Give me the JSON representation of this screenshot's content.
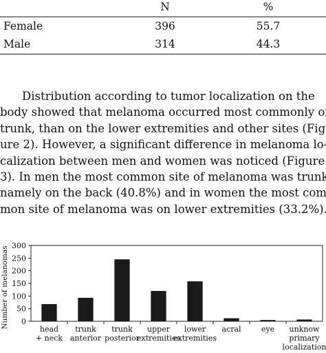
{
  "table": {
    "headers": [
      "",
      "N",
      "%"
    ],
    "rows": [
      {
        "label": "Female",
        "n": "396",
        "pct": "55.7"
      },
      {
        "label": "Male",
        "n": "314",
        "pct": "44.3"
      }
    ]
  },
  "paragraph_lines": [
    "Distribution according to tumor localization on the",
    "body showed that melanoma occurred most commonly on",
    "trunk, than on the lower extremities and other sites (Fig-",
    "ure 2). However, a significant difference in melanoma lo-",
    "calization between men and women was noticed (Figure",
    "3). In men the most common site of melanoma was trunk",
    "namely on the back (40.8%) and in women the most com-",
    "mon site of melanoma was on lower extremities (33.2%)."
  ],
  "chart_data": {
    "type": "bar",
    "title": "",
    "xlabel": "",
    "ylabel": "Number of melanomas",
    "ylim": [
      0,
      300
    ],
    "yticks": [
      0,
      50,
      100,
      150,
      200,
      250,
      300
    ],
    "grid": false,
    "categories": [
      [
        "head",
        "+ neck"
      ],
      [
        "trunk",
        "anterior"
      ],
      [
        "trunk",
        "posterior"
      ],
      [
        "upper",
        "extremities"
      ],
      [
        "lower",
        "extremities"
      ],
      [
        "acral"
      ],
      [
        "eye"
      ],
      [
        "unknow",
        "primary",
        "localization"
      ]
    ],
    "values": [
      68,
      93,
      245,
      120,
      158,
      12,
      5,
      7
    ],
    "bar_color": "#1a1a1a"
  }
}
